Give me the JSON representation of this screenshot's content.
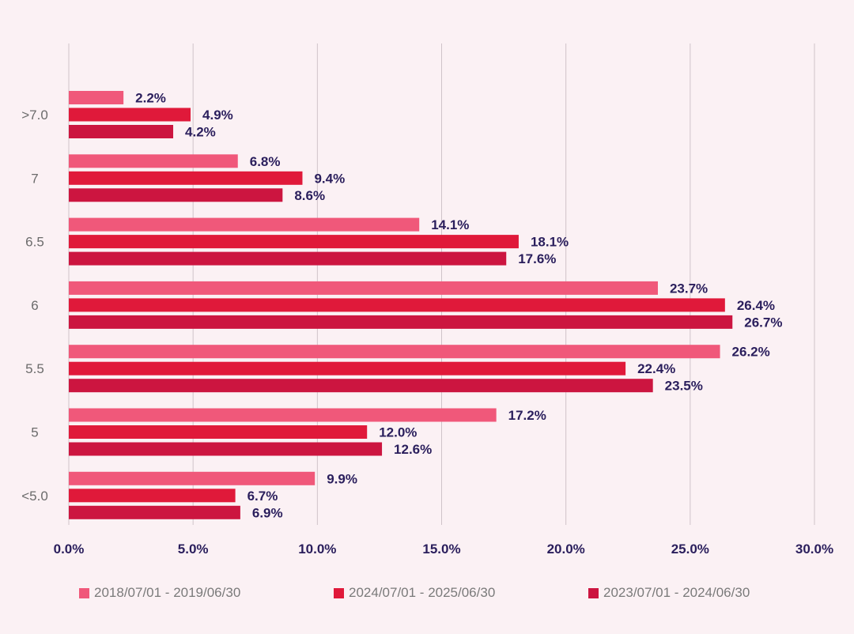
{
  "chart_data": {
    "type": "bar",
    "orientation": "horizontal",
    "categories": [
      ">7.0",
      "7",
      "6.5",
      "6",
      "5.5",
      "5",
      "<5.0"
    ],
    "series": [
      {
        "name": "2018/07/01 - 2019/06/30",
        "color": "#f0587a",
        "values": [
          2.2,
          6.8,
          14.1,
          23.7,
          26.2,
          17.2,
          9.9
        ],
        "labels": [
          "2.2%",
          "6.8%",
          "14.1%",
          "23.7%",
          "26.2%",
          "17.2%",
          "9.9%"
        ]
      },
      {
        "name": "2024/07/01 - 2025/06/30",
        "color": "#e0193a",
        "values": [
          4.9,
          9.4,
          18.1,
          26.4,
          22.4,
          12.0,
          6.7
        ],
        "labels": [
          "4.9%",
          "9.4%",
          "18.1%",
          "26.4%",
          "22.4%",
          "12.0%",
          "6.7%"
        ]
      },
      {
        "name": "2023/07/01 - 2024/06/30",
        "color": "#cc1540",
        "values": [
          4.2,
          8.6,
          17.6,
          26.7,
          23.5,
          12.6,
          6.9
        ],
        "labels": [
          "4.2%",
          "8.6%",
          "17.6%",
          "26.7%",
          "23.5%",
          "12.6%",
          "6.9%"
        ]
      }
    ],
    "xlim": [
      0,
      30
    ],
    "xticks": [
      "0.0%",
      "5.0%",
      "10.0%",
      "15.0%",
      "20.0%",
      "25.0%",
      "30.0%"
    ],
    "grid": "vertical",
    "legend_position": "bottom"
  }
}
